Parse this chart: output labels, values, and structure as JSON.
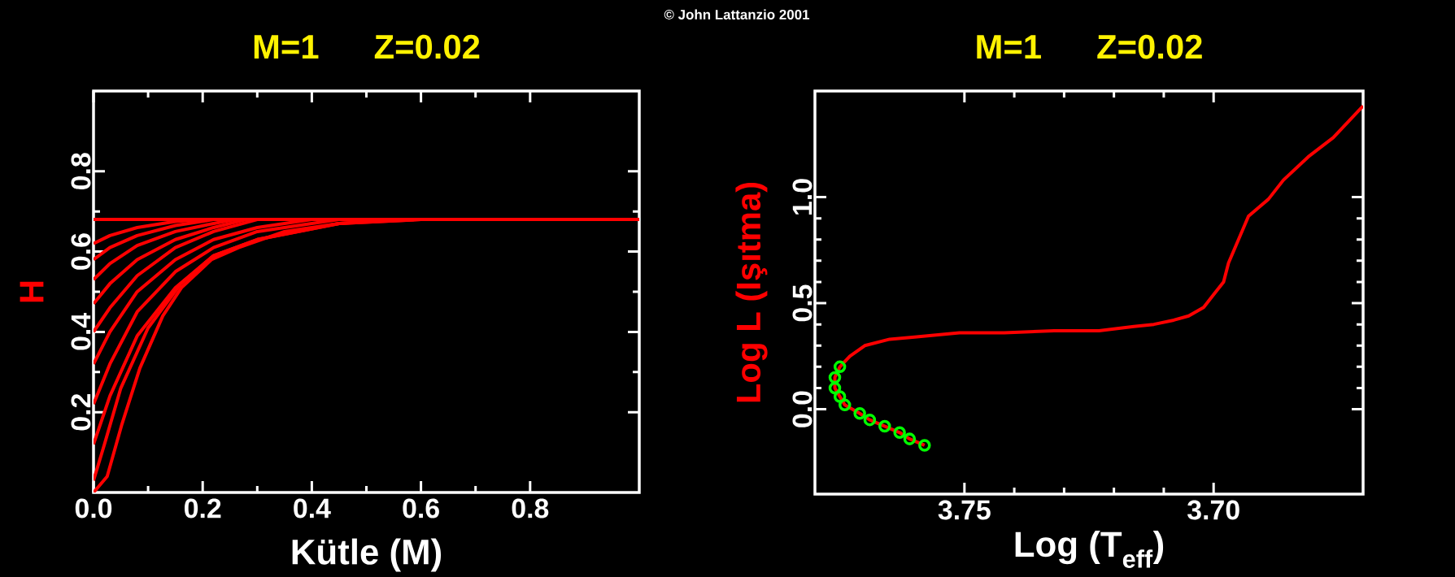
{
  "chart_data": [
    {
      "type": "line",
      "title": "M=1 Z=0.02",
      "xlabel": "Kütle (M)",
      "ylabel": "H",
      "annotations": [
        "© John Lattanzio 2001"
      ],
      "xlim": [
        0,
        1
      ],
      "ylim": [
        0,
        1
      ],
      "xticks": [
        {
          "value": 0,
          "label": "0.0"
        },
        0.2,
        0.4,
        0.6,
        0.8
      ],
      "yticks": [
        0.2,
        0.4,
        0.6,
        0.8
      ],
      "series": [
        {
          "color": "#ff0000",
          "x": [
            0,
            1
          ],
          "values": [
            0.68,
            0.68
          ]
        },
        {
          "color": "#ff0000",
          "x": [
            0,
            0.03,
            0.08,
            0.15,
            0.2
          ],
          "values": [
            0.62,
            0.64,
            0.66,
            0.675,
            0.68
          ]
        },
        {
          "color": "#ff0000",
          "x": [
            0,
            0.03,
            0.08,
            0.15,
            0.22
          ],
          "values": [
            0.58,
            0.61,
            0.64,
            0.665,
            0.68
          ]
        },
        {
          "color": "#ff0000",
          "x": [
            0,
            0.03,
            0.08,
            0.15,
            0.22,
            0.26
          ],
          "values": [
            0.53,
            0.57,
            0.615,
            0.65,
            0.67,
            0.68
          ]
        },
        {
          "color": "#ff0000",
          "x": [
            0,
            0.03,
            0.08,
            0.15,
            0.22,
            0.28
          ],
          "values": [
            0.47,
            0.52,
            0.58,
            0.63,
            0.66,
            0.68
          ]
        },
        {
          "color": "#ff0000",
          "x": [
            0,
            0.03,
            0.08,
            0.15,
            0.22,
            0.3
          ],
          "values": [
            0.4,
            0.46,
            0.54,
            0.61,
            0.65,
            0.68
          ]
        },
        {
          "color": "#ff0000",
          "x": [
            0,
            0.03,
            0.08,
            0.15,
            0.22,
            0.3,
            0.4
          ],
          "values": [
            0.32,
            0.4,
            0.5,
            0.58,
            0.63,
            0.66,
            0.68
          ]
        },
        {
          "color": "#ff0000",
          "x": [
            0,
            0.03,
            0.08,
            0.15,
            0.22,
            0.3,
            0.45
          ],
          "values": [
            0.22,
            0.32,
            0.45,
            0.55,
            0.61,
            0.65,
            0.68
          ]
        },
        {
          "color": "#ff0000",
          "x": [
            0,
            0.03,
            0.08,
            0.15,
            0.22,
            0.3,
            0.45,
            0.6
          ],
          "values": [
            0.12,
            0.24,
            0.39,
            0.51,
            0.59,
            0.63,
            0.67,
            0.68
          ]
        },
        {
          "color": "#ff0000",
          "x": [
            0,
            0.02,
            0.05,
            0.1,
            0.16,
            0.22,
            0.3,
            0.45,
            0.6
          ],
          "values": [
            0.03,
            0.12,
            0.26,
            0.41,
            0.52,
            0.59,
            0.63,
            0.67,
            0.68
          ]
        },
        {
          "color": "#ff0000",
          "x": [
            0,
            0.025,
            0.052,
            0.085,
            0.127,
            0.161,
            0.216,
            0.266,
            0.35,
            0.45,
            0.55,
            0.65
          ],
          "values": [
            0.0,
            0.04,
            0.17,
            0.31,
            0.44,
            0.51,
            0.58,
            0.61,
            0.65,
            0.67,
            0.68,
            0.68
          ]
        }
      ]
    },
    {
      "type": "line",
      "title": "M=1 Z=0.02",
      "xlabel": "Log (T$_{eff}$)",
      "ylabel": "Log L (Işıtma)",
      "xlim": [
        3.78,
        3.67
      ],
      "ylim": [
        -0.4,
        1.5
      ],
      "xticks": [
        3.75,
        {
          "value": 3.7,
          "label": "3.70"
        }
      ],
      "yticks": [
        {
          "value": 0,
          "label": "0.0"
        },
        0.5,
        {
          "value": 1,
          "label": "1.0"
        }
      ],
      "series": [
        {
          "type": "scatter",
          "marker": "circle",
          "color": "#00ff00",
          "x": [
            3.758,
            3.761,
            3.763,
            3.766,
            3.769,
            3.771,
            3.774,
            3.775,
            3.776,
            3.776,
            3.775
          ],
          "values": [
            -0.17,
            -0.14,
            -0.11,
            -0.08,
            -0.05,
            -0.02,
            0.02,
            0.06,
            0.1,
            0.15,
            0.2
          ]
        },
        {
          "color": "#ff0000",
          "x": [
            3.758,
            3.761,
            3.763,
            3.766,
            3.769,
            3.771,
            3.774,
            3.775,
            3.776,
            3.776,
            3.775,
            3.773,
            3.77,
            3.765,
            3.76,
            3.751,
            3.742,
            3.732,
            3.723,
            3.716,
            3.712,
            3.708,
            3.705,
            3.702,
            3.7,
            3.698,
            3.697,
            3.695,
            3.693,
            3.689,
            3.686,
            3.681,
            3.676,
            3.67
          ],
          "values": [
            -0.17,
            -0.14,
            -0.11,
            -0.08,
            -0.05,
            -0.02,
            0.02,
            0.06,
            0.1,
            0.15,
            0.2,
            0.25,
            0.3,
            0.33,
            0.34,
            0.36,
            0.36,
            0.37,
            0.37,
            0.39,
            0.4,
            0.42,
            0.44,
            0.48,
            0.54,
            0.6,
            0.69,
            0.8,
            0.91,
            0.99,
            1.08,
            1.19,
            1.28,
            1.43
          ]
        }
      ]
    }
  ]
}
